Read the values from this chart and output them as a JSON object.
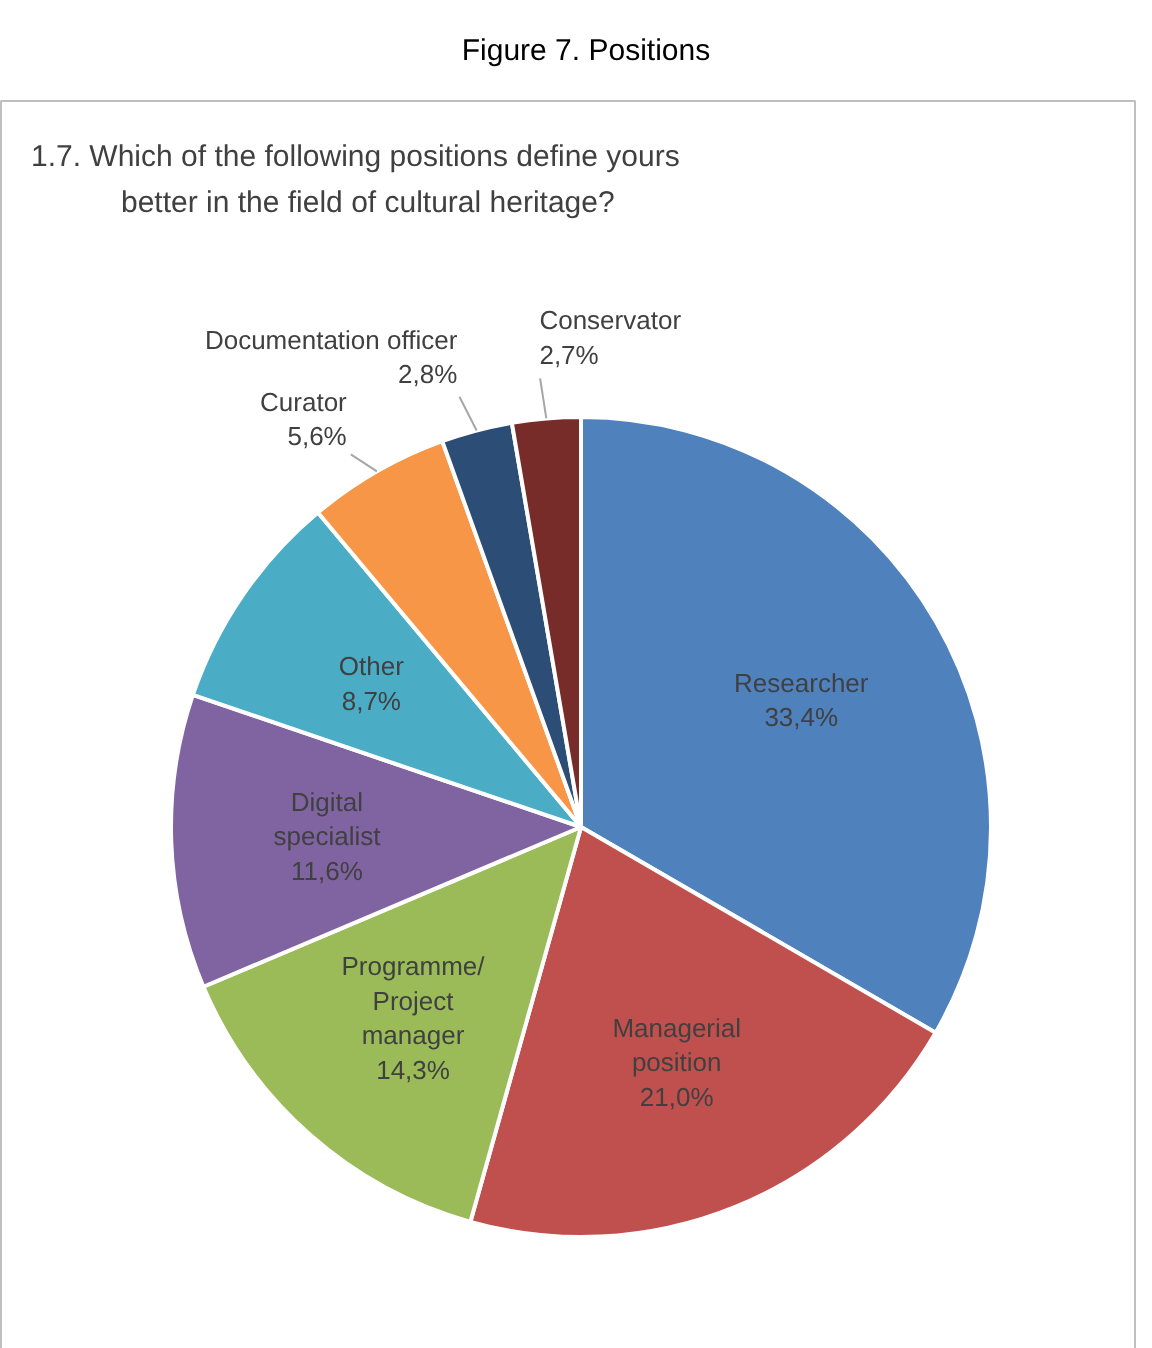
{
  "chart_data": {
    "type": "pie",
    "title": "Figure 7. Positions",
    "subtitle": "1.7. Which of the following positions define yours better in the field of cultural heritage?",
    "categories": [
      "Researcher",
      "Managerial position",
      "Programme/ Project manager",
      "Digital specialist",
      "Other",
      "Curator",
      "Documentation officer",
      "Conservator"
    ],
    "values": [
      33.4,
      21.0,
      14.3,
      11.6,
      8.7,
      5.6,
      2.8,
      2.7
    ],
    "value_labels": [
      "33,4%",
      "21,0%",
      "14,3%",
      "11,6%",
      "8,7%",
      "5,6%",
      "2,8%",
      "2,7%"
    ],
    "colors": [
      "#4f81bd",
      "#c0504d",
      "#9bbb59",
      "#8064a2",
      "#4bacc6",
      "#f79646",
      "#2c4d75",
      "#772c2a"
    ]
  }
}
